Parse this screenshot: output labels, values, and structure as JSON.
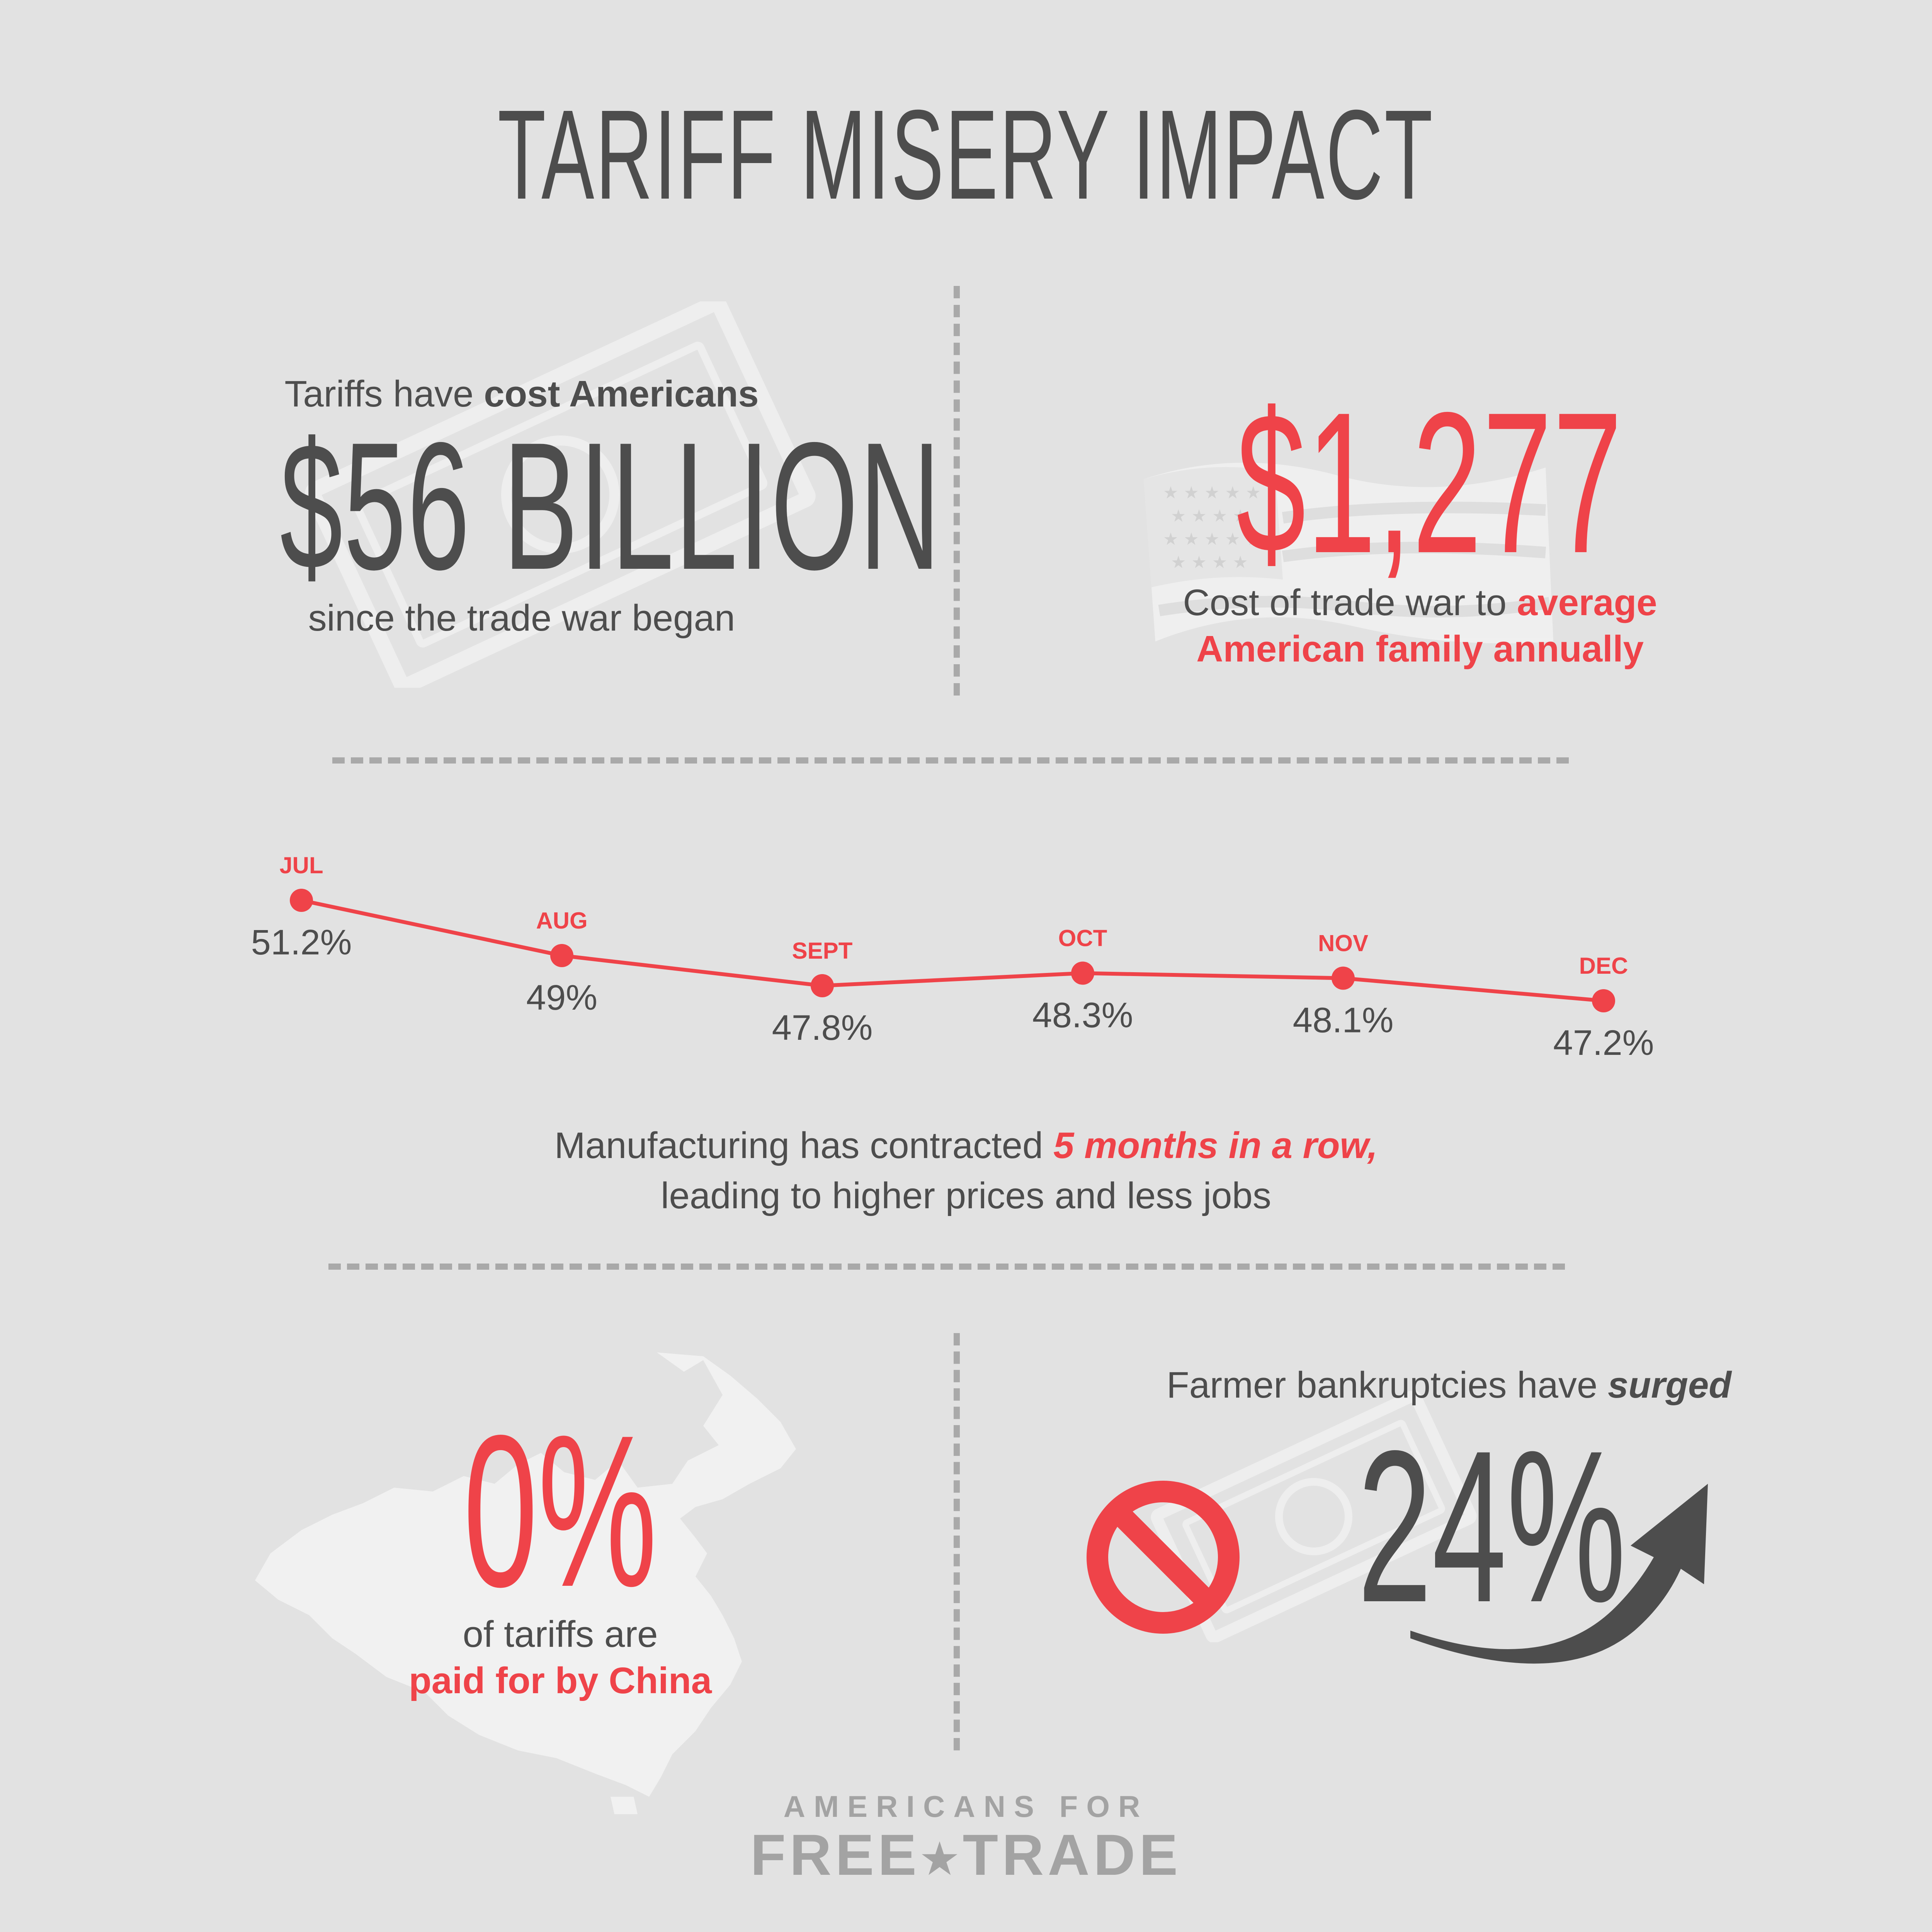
{
  "title": "TARIFF MISERY IMPACT",
  "stat_cost": {
    "intro_plain": "Tariffs have ",
    "intro_bold": "cost Americans",
    "value": "$56 BILLION",
    "after": "since the trade war began"
  },
  "stat_family": {
    "value": "$1,277",
    "caption_plain": "Cost of trade war to ",
    "caption_red_1": "average",
    "caption_red_2": "American family annually"
  },
  "chart_data": {
    "type": "line",
    "title": "",
    "xlabel": "",
    "ylabel": "",
    "categories": [
      "JUL",
      "AUG",
      "SEPT",
      "OCT",
      "NOV",
      "DEC"
    ],
    "values": [
      51.2,
      49,
      47.8,
      48.3,
      48.1,
      47.2
    ],
    "value_labels": [
      "51.2%",
      "49%",
      "47.8%",
      "48.3%",
      "48.1%",
      "47.2%"
    ],
    "ylim": [
      47.2,
      51.2
    ],
    "grid": false,
    "legend": "none",
    "line_color": "#ef4349"
  },
  "chart_caption": {
    "line1_plain": "Manufacturing has contracted ",
    "line1_emph": "5 months in a row,",
    "line2": "leading to higher prices and less jobs"
  },
  "stat_china": {
    "value": "0%",
    "caption_plain": "of tariffs are",
    "caption_red": "paid for by China"
  },
  "stat_farmer": {
    "head_plain": "Farmer bankruptcies have ",
    "head_emph": "surged",
    "value": "24%"
  },
  "logo": {
    "top": "AMERICANS FOR",
    "word1": "FREE",
    "word2": "TRADE"
  },
  "icons": [
    "dollar-bill-icon",
    "us-flag-icon",
    "china-map-icon",
    "prohibition-icon",
    "curved-up-arrow-icon",
    "star-icon"
  ],
  "colors": {
    "accent": "#ef4349",
    "text": "#4d4d4d",
    "muted": "#a3a3a3",
    "background": "#e2e2e2"
  }
}
